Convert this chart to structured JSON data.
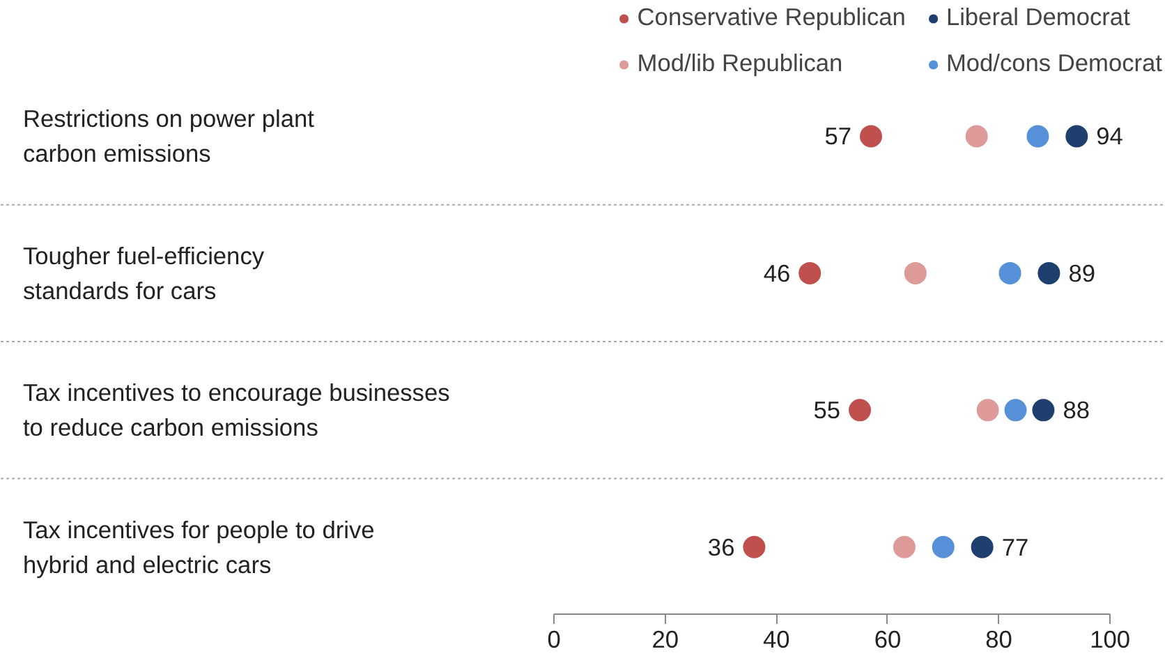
{
  "chart_data": {
    "type": "scatter",
    "categories": [
      "Restrictions on power plant\ncarbon emissions",
      "Tougher fuel-efficiency\nstandards for cars",
      "Tax incentives to encourage businesses\nto reduce carbon emissions",
      "Tax incentives for people to drive\nhybrid and electric cars"
    ],
    "orientation": "horizontal",
    "xlim": [
      0,
      100
    ],
    "xticks": [
      0,
      20,
      40,
      60,
      80,
      100
    ],
    "grid": "y",
    "legend": "top right",
    "marker": "circle",
    "series": [
      {
        "name": "Conservative Republican",
        "color": "#c0504d",
        "values": [
          57,
          46,
          55,
          36
        ],
        "value_labels": [
          "57",
          "46",
          "55",
          "36"
        ]
      },
      {
        "name": "Liberal Democrat",
        "color": "#1f3f6e",
        "values": [
          94,
          89,
          88,
          77
        ],
        "value_labels": [
          "94",
          "89",
          "88",
          "77"
        ]
      },
      {
        "name": "Mod/lib Republican",
        "color": "#dd9a98",
        "values": [
          76,
          65,
          78,
          63
        ]
      },
      {
        "name": "Mod/cons Democrat",
        "color": "#5690d8",
        "values": [
          87,
          82,
          83,
          70
        ]
      }
    ]
  }
}
